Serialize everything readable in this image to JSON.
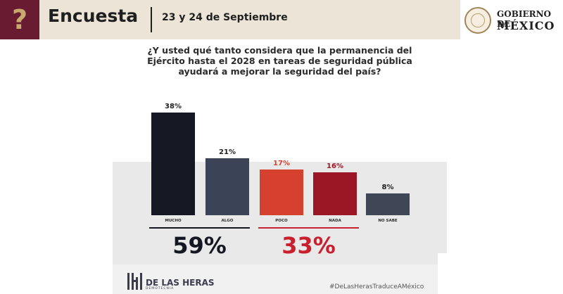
{
  "header": {
    "icon": "question-mark-icon",
    "title": "Encuesta",
    "date": "23 y 24 de Septiembre",
    "logo_line1": "GOBIERNO DE",
    "logo_line2": "MÉXICO"
  },
  "question": "¿Y usted qué tanto considera que la permanencia del Ejército hasta el 2028 en tareas de seguridad pública ayudará a mejorar la seguridad del país?",
  "colors": {
    "brand": "#691b32",
    "gold": "#c9a96e",
    "navy": "#151823",
    "red_dark": "#9b1726"
  },
  "chart_data": {
    "type": "bar",
    "categories": [
      "MUCHO",
      "ALGO",
      "POCO",
      "NADA",
      "NO SABE"
    ],
    "values": [
      38,
      21,
      17,
      16,
      8
    ],
    "value_labels": [
      "38%",
      "21%",
      "17%",
      "16%",
      "8%"
    ],
    "bar_colors": [
      "#151823",
      "#3b4456",
      "#d6412f",
      "#9b1726",
      "#3f4757"
    ],
    "label_colors": [
      "#1f1f1f",
      "#1f1f1f",
      "#d6412f",
      "#9b1726",
      "#1f1f1f"
    ],
    "groups": [
      {
        "categories": [
          "MUCHO",
          "ALGO"
        ],
        "total": "59%",
        "color": "#151823"
      },
      {
        "categories": [
          "POCO",
          "NADA"
        ],
        "total": "33%",
        "color": "#c8202e"
      }
    ],
    "title": "¿Y usted qué tanto considera que la permanencia del Ejército hasta el 2028 en tareas de seguridad pública ayudará a mejorar la seguridad del país?",
    "ylim": [
      0,
      40
    ],
    "grid": false,
    "legend": "none"
  },
  "footer": {
    "brand_name": "DE LAS HERAS",
    "brand_sub": "DEMOTECNIA",
    "hashtag": "#DeLasHerasTraduceAMéxico"
  }
}
